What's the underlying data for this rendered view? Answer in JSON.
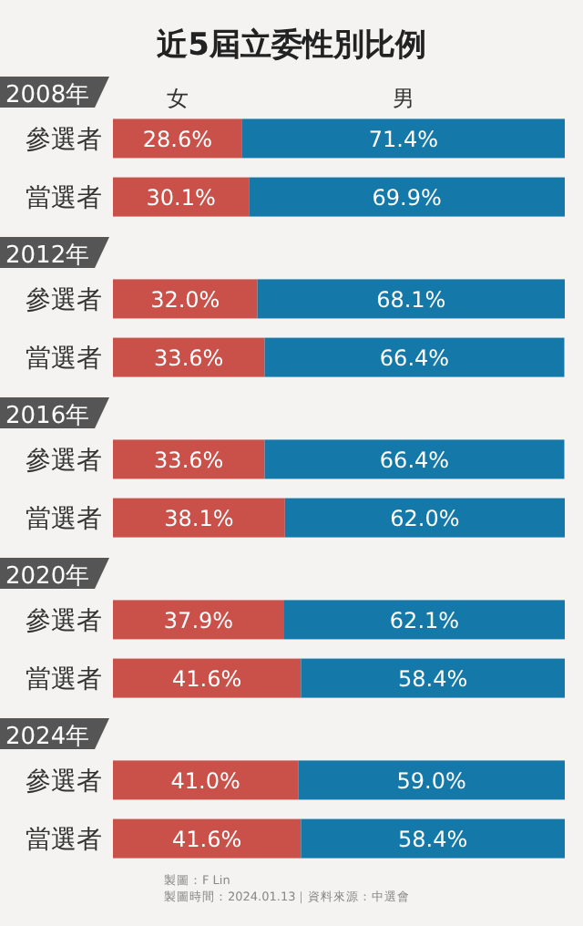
{
  "chart_data": [
    {
      "type": "bar",
      "orientation": "horizontal",
      "stacked": true,
      "title": "2008年",
      "annotations": [
        "近5屆立委性別比例"
      ],
      "categories": [
        "參選者",
        "當選者"
      ],
      "legend": "top",
      "series": [
        {
          "name": "女",
          "color": "#c9514a",
          "values": [
            28.6,
            30.1
          ],
          "value_labels": [
            "28.6%",
            "30.1%"
          ]
        },
        {
          "name": "男",
          "color": "#1479a8",
          "values": [
            71.4,
            69.9
          ],
          "value_labels": [
            "71.4%",
            "69.9%"
          ]
        }
      ]
    },
    {
      "type": "bar",
      "orientation": "horizontal",
      "stacked": true,
      "title": "2012年",
      "categories": [
        "參選者",
        "當選者"
      ],
      "series": [
        {
          "color": "#c9514a",
          "values": [
            32.0,
            33.6
          ],
          "value_labels": [
            "32.0%",
            "33.6%"
          ]
        },
        {
          "color": "#1479a8",
          "values": [
            68.1,
            66.4
          ],
          "value_labels": [
            "68.1%",
            "66.4%"
          ]
        }
      ]
    },
    {
      "type": "bar",
      "orientation": "horizontal",
      "stacked": true,
      "title": "2016年",
      "categories": [
        "參選者",
        "當選者"
      ],
      "series": [
        {
          "color": "#c9514a",
          "values": [
            33.6,
            38.1
          ],
          "value_labels": [
            "33.6%",
            "38.1%"
          ]
        },
        {
          "color": "#1479a8",
          "values": [
            66.4,
            62.0
          ],
          "value_labels": [
            "66.4%",
            "62.0%"
          ]
        }
      ]
    },
    {
      "type": "bar",
      "orientation": "horizontal",
      "stacked": true,
      "title": "2020年",
      "categories": [
        "參選者",
        "當選者"
      ],
      "series": [
        {
          "color": "#c9514a",
          "values": [
            37.9,
            41.6
          ],
          "value_labels": [
            "37.9%",
            "41.6%"
          ]
        },
        {
          "color": "#1479a8",
          "values": [
            62.1,
            58.4
          ],
          "value_labels": [
            "62.1%",
            "58.4%"
          ]
        }
      ]
    },
    {
      "type": "bar",
      "orientation": "horizontal",
      "stacked": true,
      "title": "2024年",
      "categories": [
        "參選者",
        "當選者"
      ],
      "annotations": [
        "製圖：F Lin",
        "製圖時間：2024.01.13｜資料來源：中選會"
      ],
      "series": [
        {
          "color": "#c9514a",
          "values": [
            41.0,
            41.6
          ],
          "value_labels": [
            "41.0%",
            "41.6%"
          ]
        },
        {
          "color": "#1479a8",
          "values": [
            59.0,
            58.4
          ],
          "value_labels": [
            "59.0%",
            "58.4%"
          ]
        }
      ]
    }
  ]
}
